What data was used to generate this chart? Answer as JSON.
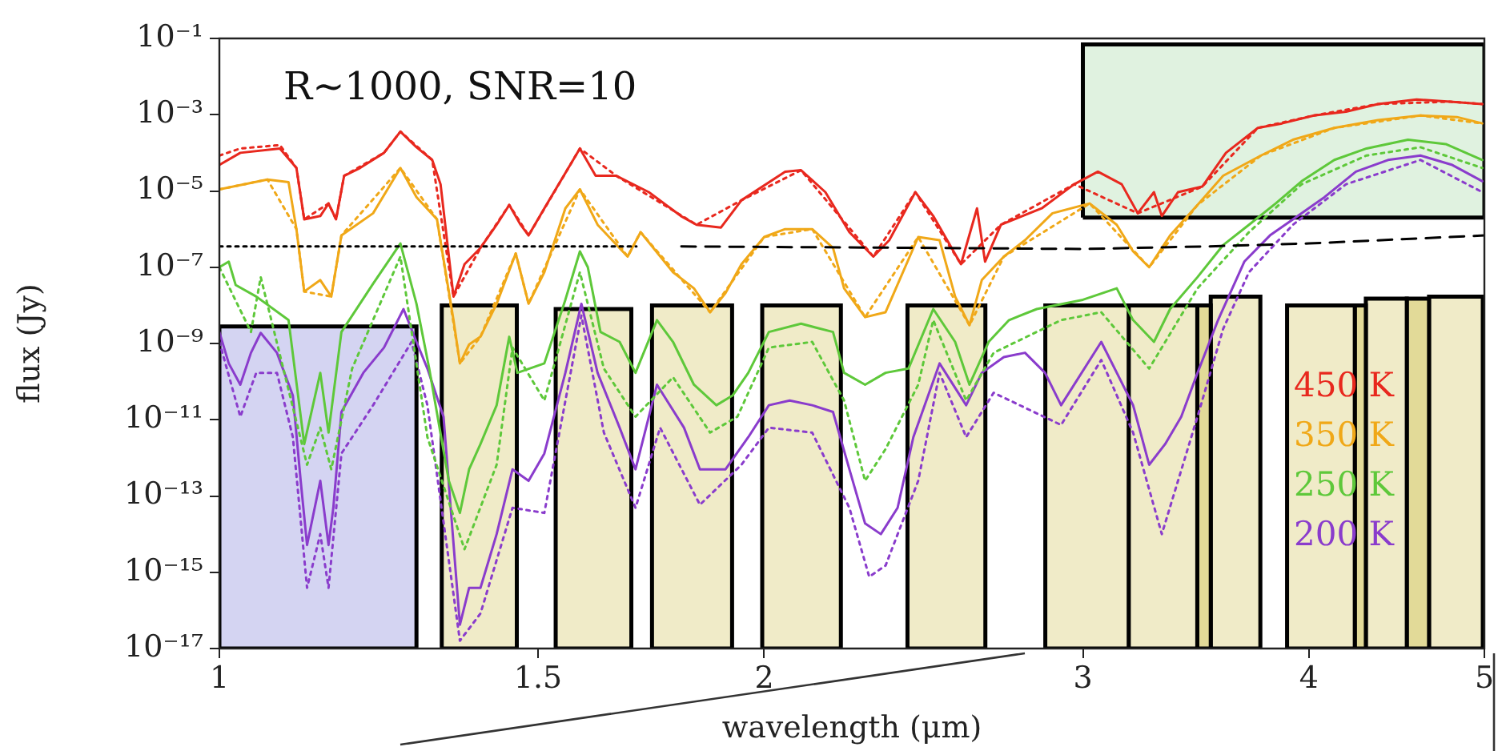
{
  "chart_data": {
    "type": "line",
    "xlabel": "wavelength (μm)",
    "ylabel": "flux (Jy)",
    "annotations": [
      "R∼1000, SNR=10"
    ],
    "log": "xy",
    "xlim": [
      1,
      5
    ],
    "ylim": [
      1e-17,
      0.1
    ],
    "xticks": [
      1,
      1.5,
      2,
      3,
      4,
      5
    ],
    "yticks": [
      {
        "value": 1e-17,
        "label": "10⁻¹⁷"
      },
      {
        "value": 1e-15,
        "label": "10⁻¹⁵"
      },
      {
        "value": 1e-13,
        "label": "10⁻¹³"
      },
      {
        "value": 1e-11,
        "label": "10⁻¹¹"
      },
      {
        "value": 1e-09,
        "label": "10⁻⁹"
      },
      {
        "value": 1e-07,
        "label": "10⁻⁷"
      },
      {
        "value": 1e-05,
        "label": "10⁻⁵"
      },
      {
        "value": 0.001,
        "label": "10⁻³"
      },
      {
        "value": 0.1,
        "label": "10⁻¹"
      }
    ],
    "legend": "bottom right",
    "series": [
      {
        "type": "area",
        "color": "#d4d4f2",
        "x": [
          1,
          1,
          1.285,
          1.285,
          1
        ],
        "values": [
          1e-17,
          2.8e-09,
          2.8e-09,
          1e-17,
          1e-17
        ]
      },
      {
        "type": "area",
        "color": "#f0ebc8",
        "x": [
          1.327,
          1.327,
          1.46,
          1.46,
          1.327
        ],
        "values": [
          1e-17,
          1e-08,
          1e-08,
          1e-17,
          1e-17
        ]
      },
      {
        "type": "area",
        "color": "#f0ebc8",
        "x": [
          1.534,
          1.534,
          1.689,
          1.689,
          1.534
        ],
        "values": [
          1e-17,
          8e-09,
          8e-09,
          1e-17,
          1e-17
        ]
      },
      {
        "type": "area",
        "color": "#f0ebc8",
        "x": [
          1.734,
          1.734,
          1.92,
          1.92,
          1.734
        ],
        "values": [
          1e-17,
          1e-08,
          1e-08,
          1e-17,
          1e-17
        ]
      },
      {
        "type": "area",
        "color": "#f0ebc8",
        "x": [
          1.995,
          1.995,
          2.205,
          2.205,
          1.995
        ],
        "values": [
          1e-17,
          1e-08,
          1e-08,
          1e-17,
          1e-17
        ]
      },
      {
        "type": "area",
        "color": "#f0ebc8",
        "x": [
          2.4,
          2.4,
          2.65,
          2.65,
          2.4
        ],
        "values": [
          1e-17,
          1e-08,
          1e-08,
          1e-17,
          1e-17
        ]
      },
      {
        "type": "area",
        "color": "#f0ebc8",
        "x": [
          2.86,
          2.86,
          3.18,
          3.18,
          2.86
        ],
        "values": [
          1e-17,
          1e-08,
          1e-08,
          1e-17,
          1e-17
        ]
      },
      {
        "type": "area",
        "color": "#f0ebc8",
        "x": [
          3.18,
          3.18,
          3.47,
          3.47,
          3.18
        ],
        "values": [
          1e-17,
          1e-08,
          1e-08,
          1e-17,
          1e-17
        ]
      },
      {
        "type": "area",
        "color": "#e2da98",
        "x": [
          3.47,
          3.47,
          3.53,
          3.53,
          3.47
        ],
        "values": [
          1e-17,
          1e-08,
          1e-08,
          1e-17,
          1e-17
        ]
      },
      {
        "type": "area",
        "color": "#f0ebc8",
        "x": [
          3.53,
          3.53,
          3.76,
          3.76,
          3.53
        ],
        "values": [
          1e-17,
          1.7e-08,
          1.7e-08,
          1e-17,
          1e-17
        ]
      },
      {
        "type": "area",
        "color": "#f0ebc8",
        "x": [
          3.89,
          3.89,
          4.24,
          4.24,
          3.89
        ],
        "values": [
          1e-17,
          1e-08,
          1e-08,
          1e-17,
          1e-17
        ]
      },
      {
        "type": "area",
        "color": "#e2da98",
        "x": [
          4.24,
          4.24,
          4.3,
          4.3,
          4.24
        ],
        "values": [
          1e-17,
          1e-08,
          1e-08,
          1e-17,
          1e-17
        ]
      },
      {
        "type": "area",
        "color": "#f0ebc8",
        "x": [
          4.3,
          4.3,
          4.53,
          4.53,
          4.3
        ],
        "values": [
          1e-17,
          1.5e-08,
          1.5e-08,
          1e-17,
          1e-17
        ]
      },
      {
        "type": "area",
        "color": "#e2da98",
        "x": [
          4.53,
          4.53,
          4.66,
          4.66,
          4.53
        ],
        "values": [
          1e-17,
          1.5e-08,
          1.5e-08,
          1e-17,
          1e-17
        ]
      },
      {
        "type": "area",
        "color": "#f0ebc8",
        "x": [
          4.66,
          4.66,
          4.99,
          4.99,
          4.66
        ],
        "values": [
          1e-17,
          1.7e-08,
          1.7e-08,
          1e-17,
          1e-17
        ]
      },
      {
        "type": "area",
        "color": "#e0f2e0",
        "x": [
          3,
          3,
          5,
          5,
          3
        ],
        "values": [
          2e-06,
          0.07,
          0.07,
          2e-06,
          2e-06
        ]
      },
      {
        "color": "#000000",
        "line_style": "dotted",
        "x": [
          1,
          1.7
        ],
        "values": [
          3.5e-07,
          3.5e-07
        ]
      },
      {
        "color": "#000000",
        "line_style": "dashed",
        "x": [
          1.8,
          2.5,
          3,
          3.5,
          4,
          5
        ],
        "values": [
          3.5e-07,
          3.2e-07,
          3e-07,
          3.5e-07,
          4.2e-07,
          6.8e-07
        ]
      },
      {
        "color": "#e8281e",
        "line_style": "dotted",
        "x": [
          1,
          1.027,
          1.08,
          1.103,
          1.114,
          1.149,
          1.16,
          1.172,
          1.233,
          1.259,
          1.311,
          1.347,
          1.394,
          1.446,
          1.482,
          1.582,
          1.657,
          1.835,
          1.943,
          2.096,
          2.298,
          2.424,
          2.569,
          2.703,
          2.967,
          3.217,
          3.492,
          3.748,
          4.025,
          4.367,
          4.787,
          4.987
        ],
        "values": [
          8.5e-05,
          0.00013,
          0.00016,
          4e-05,
          1.8e-06,
          4.7e-06,
          1.8e-06,
          2.5e-05,
          0.0001,
          0.00036,
          6.5e-05,
          1.7e-08,
          3.2e-07,
          4.3e-06,
          6.8e-07,
          0.00013,
          2.5e-05,
          1.3e-06,
          5.7e-06,
          3.5e-05,
          1.9e-07,
          9.3e-06,
          1.2e-07,
          1.3e-06,
          1.5e-05,
          2.6e-06,
          1.3e-05,
          0.00045,
          0.00095,
          0.0019,
          0.0022,
          0.0019
        ]
      },
      {
        "color": "#f0a818",
        "line_style": "dotted",
        "x": [
          1,
          1.063,
          1.103,
          1.114,
          1.153,
          1.168,
          1.259,
          1.319,
          1.358,
          1.394,
          1.458,
          1.482,
          1.582,
          1.681,
          1.709,
          1.867,
          2.0,
          2.126,
          2.274,
          2.433,
          2.597,
          2.713,
          3.026,
          3.264,
          3.471,
          3.763,
          4.131,
          4.61,
          4.987
        ],
        "values": [
          1.1e-05,
          2e-05,
          1e-06,
          2.3e-08,
          1.7e-08,
          6.8e-07,
          4e-05,
          1.8e-06,
          3e-10,
          1.5e-09,
          2.3e-07,
          1.1e-08,
          1.1e-05,
          1.9e-07,
          8.3e-07,
          6.6e-09,
          6.2e-07,
          1e-06,
          4.9e-09,
          6.2e-07,
          3e-09,
          1.9e-07,
          4.7e-06,
          1e-07,
          4.3e-06,
          8.5e-05,
          0.00045,
          0.00095,
          0.00059
        ]
      },
      {
        "color": "#5ec83a",
        "line_style": "dotted",
        "x": [
          1,
          1.041,
          1.054,
          1.118,
          1.137,
          1.153,
          1.184,
          1.259,
          1.303,
          1.366,
          1.423,
          1.452,
          1.512,
          1.582,
          1.631,
          1.698,
          1.781,
          1.867,
          1.933,
          2.012,
          2.126,
          2.214,
          2.274,
          2.334,
          2.433,
          2.48,
          2.586,
          2.678,
          2.918,
          3.071,
          3.264,
          3.471,
          3.706,
          3.963,
          4.304,
          4.61,
          4.987
        ],
        "values": [
          1e-07,
          2e-09,
          5.5e-08,
          6.6e-13,
          6.2e-12,
          5e-13,
          2.2e-10,
          1.9e-07,
          3.5e-12,
          4e-15,
          6.6e-13,
          7.8e-10,
          3.2e-11,
          7.4e-08,
          2.2e-10,
          1.2e-11,
          1.3e-10,
          4.6e-12,
          1.2e-11,
          7.8e-10,
          1.1e-09,
          3.2e-11,
          2.5e-13,
          1.7e-12,
          8.3e-11,
          4.1e-09,
          3.2e-11,
          5.7e-10,
          4.1e-09,
          6.6e-09,
          2.2e-10,
          2.8e-08,
          8.3e-07,
          1.5e-05,
          8.5e-05,
          0.00014,
          4e-05
        ]
      },
      {
        "color": "#8a3ccc",
        "line_style": "dotted",
        "x": [
          1,
          1.027,
          1.048,
          1.076,
          1.098,
          1.118,
          1.137,
          1.149,
          1.168,
          1.216,
          1.277,
          1.303,
          1.358,
          1.394,
          1.452,
          1.512,
          1.585,
          1.631,
          1.698,
          1.752,
          1.843,
          1.943,
          2.012,
          2.126,
          2.229,
          2.286,
          2.334,
          2.433,
          2.5,
          2.586,
          2.678,
          2.918,
          3.071,
          3.198,
          3.317,
          3.471,
          3.586,
          3.706,
          3.919,
          4.193,
          4.61,
          4.987
        ],
        "values": [
          1.1e-09,
          1.2e-11,
          1.7e-10,
          1.7e-10,
          3.5e-12,
          3.9e-16,
          1e-14,
          3.9e-16,
          1.3e-12,
          2.4e-11,
          1.1e-09,
          2.4e-11,
          1.6e-17,
          8.3e-17,
          4.9e-14,
          3.6e-14,
          5.4e-09,
          4.6e-12,
          4.9e-14,
          6.2e-12,
          5.9e-14,
          6.6e-13,
          6.2e-12,
          4.6e-12,
          4.9e-14,
          7.6e-16,
          1.5e-15,
          2.5e-13,
          1.7e-10,
          3.5e-12,
          5.1e-11,
          7.3e-12,
          3.7e-10,
          4.6e-12,
          1e-14,
          1.2e-11,
          2.4e-09,
          7.4e-08,
          1.3e-06,
          1.5e-05,
          6.5e-05,
          9.3e-06
        ]
      },
      {
        "name": "450 K",
        "color": "#e8281e",
        "x": [
          1,
          1.027,
          1.08,
          1.103,
          1.114,
          1.137,
          1.149,
          1.16,
          1.172,
          1.196,
          1.233,
          1.259,
          1.285,
          1.311,
          1.325,
          1.347,
          1.366,
          1.394,
          1.423,
          1.446,
          1.467,
          1.482,
          1.512,
          1.559,
          1.582,
          1.614,
          1.657,
          1.727,
          1.799,
          1.835,
          1.893,
          1.943,
          2.054,
          2.096,
          2.162,
          2.229,
          2.298,
          2.345,
          2.424,
          2.48,
          2.569,
          2.622,
          2.649,
          2.703,
          2.847,
          2.967,
          3.058,
          3.152,
          3.217,
          3.284,
          3.317,
          3.386,
          3.492,
          3.599,
          3.748,
          3.865,
          4.025,
          4.193,
          4.367,
          4.587,
          4.787,
          4.987
        ],
        "values": [
          4.8e-05,
          0.0001,
          0.00013,
          4e-05,
          1.8e-06,
          2.2e-06,
          4.7e-06,
          1.8e-06,
          2.5e-05,
          4e-05,
          0.0001,
          0.00036,
          0.00014,
          6.5e-05,
          1.5e-05,
          1.7e-08,
          1.2e-07,
          3.2e-07,
          1.3e-06,
          4.3e-06,
          1.3e-06,
          6.8e-07,
          3.5e-06,
          4e-05,
          0.00013,
          2.5e-05,
          2.5e-05,
          9.3e-06,
          2.2e-06,
          1.3e-06,
          1.1e-06,
          5.7e-06,
          3.2e-05,
          3.5e-05,
          9.3e-06,
          8.3e-07,
          1.9e-07,
          5.1e-07,
          9.3e-06,
          2.2e-06,
          1.2e-07,
          3.5e-06,
          1.4e-07,
          1.3e-06,
          3.5e-06,
          1.5e-05,
          3.2e-05,
          1.5e-05,
          2.6e-06,
          9.3e-06,
          2.2e-06,
          9.3e-06,
          1.3e-05,
          0.0001,
          0.00045,
          0.00059,
          0.00095,
          0.0012,
          0.0019,
          0.0025,
          0.0022,
          0.0019
        ]
      },
      {
        "name": "350 K",
        "color": "#f0a818",
        "x": [
          1,
          1.063,
          1.092,
          1.103,
          1.114,
          1.137,
          1.153,
          1.168,
          1.216,
          1.259,
          1.285,
          1.319,
          1.347,
          1.358,
          1.374,
          1.394,
          1.423,
          1.458,
          1.482,
          1.512,
          1.553,
          1.582,
          1.618,
          1.681,
          1.709,
          1.781,
          1.829,
          1.867,
          1.904,
          1.943,
          2.0,
          2.054,
          2.126,
          2.183,
          2.214,
          2.274,
          2.334,
          2.433,
          2.5,
          2.55,
          2.597,
          2.638,
          2.713,
          2.787,
          2.886,
          3.026,
          3.132,
          3.198,
          3.264,
          3.352,
          3.471,
          3.586,
          3.763,
          3.919,
          4.131,
          4.367,
          4.61,
          4.828,
          4.987
        ],
        "values": [
          1.1e-05,
          2e-05,
          1.7e-05,
          1e-06,
          2.3e-08,
          4.6e-08,
          1.7e-08,
          6.8e-07,
          2.6e-06,
          4e-05,
          6.9e-06,
          1.8e-06,
          4.1e-09,
          3e-10,
          9.4e-10,
          1.5e-09,
          1.1e-08,
          2.3e-07,
          1.1e-08,
          7.4e-08,
          3.5e-06,
          1.1e-05,
          1.3e-06,
          1.9e-07,
          8.3e-07,
          7.4e-08,
          2.8e-08,
          6.6e-09,
          2.1e-08,
          1.2e-07,
          6.2e-07,
          1e-06,
          1e-06,
          3.2e-07,
          2.8e-08,
          4.9e-09,
          6.6e-09,
          6.2e-07,
          5.1e-07,
          1.7e-08,
          3e-09,
          4.6e-08,
          1.9e-07,
          5.1e-07,
          2.6e-06,
          4.7e-06,
          1.3e-06,
          2.6e-07,
          1e-07,
          6.8e-07,
          4.3e-06,
          2.5e-05,
          8.5e-05,
          0.00022,
          0.00045,
          0.00072,
          0.00095,
          0.00087,
          0.00059
        ]
      },
      {
        "name": "250 K",
        "color": "#5ec83a",
        "x": [
          1,
          1.012,
          1.021,
          1.048,
          1.092,
          1.114,
          1.137,
          1.149,
          1.168,
          1.216,
          1.259,
          1.285,
          1.306,
          1.339,
          1.358,
          1.374,
          1.394,
          1.423,
          1.446,
          1.461,
          1.512,
          1.553,
          1.582,
          1.598,
          1.624,
          1.664,
          1.698,
          1.745,
          1.781,
          1.829,
          1.882,
          1.921,
          1.96,
          2.012,
          2.096,
          2.183,
          2.214,
          2.274,
          2.334,
          2.403,
          2.48,
          2.55,
          2.597,
          2.661,
          2.731,
          2.829,
          3.0,
          3.132,
          3.198,
          3.284,
          3.352,
          3.471,
          3.586,
          3.706,
          3.834,
          3.963,
          4.131,
          4.304,
          4.537,
          4.76,
          4.987
        ],
        "values": [
          1e-07,
          1.4e-07,
          3.4e-08,
          1.7e-08,
          4.1e-09,
          2.3e-12,
          1.7e-10,
          4.6e-12,
          2e-09,
          3.7e-08,
          4.2e-07,
          1.1e-08,
          2.2e-10,
          2.5e-13,
          3.6e-14,
          5e-13,
          2.3e-12,
          2.4e-11,
          1.5e-09,
          1.7e-10,
          3e-10,
          1.4e-08,
          2.6e-07,
          1e-07,
          2e-09,
          1.1e-09,
          1.7e-10,
          4.1e-09,
          1.1e-09,
          8.3e-11,
          2.4e-11,
          4.3e-11,
          1.7e-10,
          2e-09,
          3.3e-09,
          2e-09,
          1.7e-10,
          8.3e-11,
          1.7e-10,
          2.2e-10,
          8e-09,
          1.1e-09,
          8.3e-11,
          1.1e-09,
          4.1e-09,
          8e-09,
          1.4e-08,
          2.8e-08,
          4.1e-09,
          1.1e-09,
          8e-09,
          5.5e-08,
          3.8e-07,
          1.3e-06,
          4.7e-06,
          1.8e-05,
          6.5e-05,
          0.00013,
          0.00022,
          0.00017,
          6.5e-05
        ]
      },
      {
        "name": "200 K",
        "color": "#8a3ccc",
        "x": [
          1,
          1.012,
          1.027,
          1.041,
          1.054,
          1.076,
          1.098,
          1.109,
          1.118,
          1.137,
          1.149,
          1.156,
          1.168,
          1.201,
          1.233,
          1.264,
          1.285,
          1.303,
          1.33,
          1.358,
          1.374,
          1.394,
          1.423,
          1.452,
          1.482,
          1.512,
          1.553,
          1.585,
          1.618,
          1.664,
          1.698,
          1.745,
          1.806,
          1.843,
          1.904,
          1.96,
          2.012,
          2.066,
          2.126,
          2.183,
          2.229,
          2.274,
          2.32,
          2.37,
          2.418,
          2.5,
          2.586,
          2.638,
          2.713,
          2.787,
          2.859,
          2.918,
          3.071,
          3.198,
          3.264,
          3.331,
          3.4,
          3.471,
          3.563,
          3.684,
          3.806,
          3.919,
          4.08,
          4.246,
          4.423,
          4.61,
          4.8,
          4.987
        ],
        "values": [
          2e-09,
          3e-10,
          8.3e-11,
          5.7e-10,
          1.9e-09,
          5.7e-10,
          4.3e-11,
          2.5e-13,
          5.2e-15,
          2.5e-13,
          5.2e-15,
          4.9e-14,
          1.6e-11,
          1.7e-10,
          7.8e-10,
          8e-09,
          1.1e-09,
          2.2e-10,
          1.2e-11,
          4.2e-17,
          3.9e-16,
          3.9e-16,
          1e-14,
          5e-13,
          2.5e-13,
          1.3e-12,
          1.7e-10,
          1.1e-08,
          1.7e-10,
          6.2e-12,
          5e-13,
          8.3e-11,
          6.2e-12,
          5e-13,
          5e-13,
          3.5e-12,
          2.4e-11,
          3.2e-11,
          2.4e-11,
          1.6e-11,
          5e-13,
          1.9e-14,
          1e-14,
          4.9e-14,
          3.5e-12,
          3e-10,
          2.4e-11,
          1.7e-10,
          4.4e-10,
          5.7e-10,
          1.7e-10,
          2.4e-11,
          1.1e-09,
          2.4e-11,
          6.6e-13,
          2.3e-12,
          1.2e-11,
          1.7e-10,
          4.1e-09,
          1.4e-07,
          6.8e-07,
          1.8e-06,
          6.9e-06,
          3.2e-05,
          6.5e-05,
          8.5e-05,
          4.8e-05,
          1.8e-05
        ]
      }
    ]
  }
}
